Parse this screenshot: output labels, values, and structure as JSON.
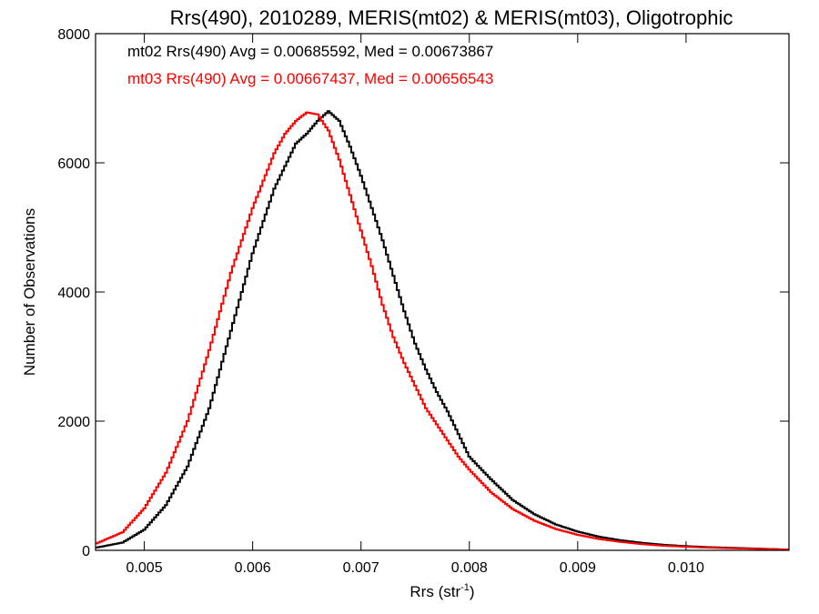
{
  "chart_data": {
    "type": "line",
    "title": "Rrs(490), 2010289, MERIS(mt02) & MERIS(mt03), Oligotrophic",
    "xlabel": "Rrs (str",
    "xlabel_superscript": "-1",
    "xlabel_suffix": ")",
    "ylabel": "Number of Observations",
    "xlim": [
      0.00455,
      0.01095
    ],
    "ylim": [
      0,
      8000
    ],
    "xticks": [
      {
        "value": 0.005,
        "label": "0.005"
      },
      {
        "value": 0.006,
        "label": "0.006"
      },
      {
        "value": 0.007,
        "label": "0.007"
      },
      {
        "value": 0.008,
        "label": "0.008"
      },
      {
        "value": 0.009,
        "label": "0.009"
      },
      {
        "value": 0.01,
        "label": "0.010"
      }
    ],
    "yticks": [
      {
        "value": 0,
        "label": "0"
      },
      {
        "value": 2000,
        "label": "2000"
      },
      {
        "value": 4000,
        "label": "4000"
      },
      {
        "value": 6000,
        "label": "6000"
      },
      {
        "value": 8000,
        "label": "8000"
      }
    ],
    "legend_placement": "top-left",
    "series": [
      {
        "name": "mt02",
        "legend": "mt02 Rrs(490) Avg = 0.00685592, Med = 0.00673867",
        "color": "#000000",
        "x": [
          0.00455,
          0.0048,
          0.005,
          0.0052,
          0.0054,
          0.0056,
          0.0058,
          0.006,
          0.0062,
          0.0064,
          0.0065,
          0.0066,
          0.0067,
          0.0068,
          0.0069,
          0.007,
          0.0071,
          0.0072,
          0.0073,
          0.0074,
          0.0075,
          0.0076,
          0.0077,
          0.0078,
          0.0079,
          0.008,
          0.0082,
          0.0084,
          0.0086,
          0.0088,
          0.009,
          0.0092,
          0.0094,
          0.0096,
          0.0098,
          0.01,
          0.0102,
          0.0104,
          0.0106,
          0.0108,
          0.01095
        ],
        "y": [
          40,
          120,
          320,
          700,
          1300,
          2200,
          3400,
          4600,
          5600,
          6300,
          6450,
          6650,
          6800,
          6650,
          6250,
          5800,
          5300,
          4800,
          4250,
          3700,
          3200,
          2800,
          2450,
          2150,
          1800,
          1450,
          1100,
          780,
          560,
          400,
          290,
          210,
          155,
          115,
          85,
          65,
          50,
          40,
          30,
          20,
          10
        ]
      },
      {
        "name": "mt03",
        "legend": "mt03 Rrs(490) Avg = 0.00667437, Med = 0.00656543",
        "color": "#ff0000",
        "x": [
          0.00455,
          0.0048,
          0.005,
          0.0052,
          0.0054,
          0.0056,
          0.0058,
          0.006,
          0.0062,
          0.0063,
          0.0064,
          0.0065,
          0.0066,
          0.0067,
          0.0068,
          0.0069,
          0.007,
          0.0071,
          0.0072,
          0.0073,
          0.0074,
          0.0075,
          0.0076,
          0.0077,
          0.0078,
          0.0079,
          0.008,
          0.0082,
          0.0084,
          0.0086,
          0.0088,
          0.009,
          0.0092,
          0.0094,
          0.0096,
          0.0098,
          0.01,
          0.0102,
          0.0104,
          0.0106,
          0.0108,
          0.01095
        ],
        "y": [
          100,
          280,
          650,
          1200,
          2000,
          3100,
          4300,
          5300,
          6150,
          6450,
          6650,
          6780,
          6750,
          6500,
          6050,
          5500,
          4950,
          4400,
          3800,
          3300,
          2900,
          2550,
          2200,
          1950,
          1700,
          1450,
          1250,
          900,
          640,
          460,
          330,
          240,
          175,
          130,
          95,
          70,
          55,
          42,
          33,
          25,
          18,
          10
        ]
      }
    ]
  }
}
